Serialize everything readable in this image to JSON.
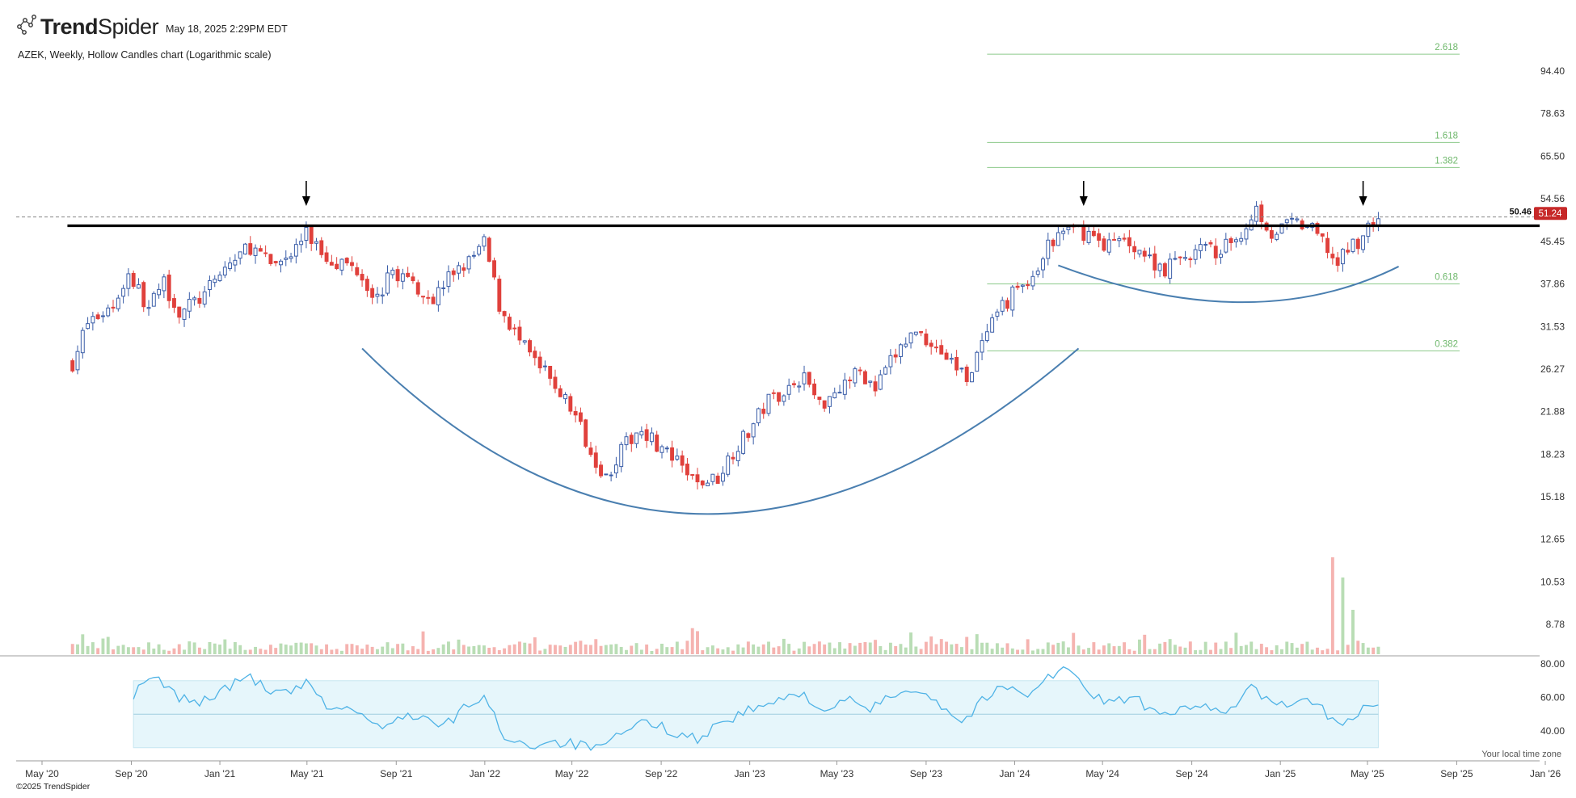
{
  "header": {
    "brand_bold": "Trend",
    "brand_light": "Spider",
    "timestamp": "May 18, 2025 2:29PM EDT",
    "subtitle": "AZEK, Weekly, Hollow Candles chart (Logarithmic scale)",
    "timezone_note": "Your local time zone",
    "copyright": "©2025 TrendSpider"
  },
  "colors": {
    "up": "#3a5da8",
    "down": "#e0413c",
    "vol_up": "#b9ddb5",
    "vol_down": "#f5b3b0",
    "fib": "#8cc98a",
    "fib_text": "#6fb86c",
    "arc": "#4a7fb0",
    "rsi_line": "#4fb3e6",
    "rsi_band": "#e6f6fb",
    "resistance": "#000000",
    "price_badge": "#c62828"
  },
  "icons": [
    "trendspider-logo-icon",
    "arrow-down-icon"
  ],
  "chart_data": {
    "type": "candlestick",
    "symbol": "AZEK",
    "interval": "Weekly",
    "scale": "log",
    "price_axis_ticks": [
      94.4,
      78.63,
      65.5,
      54.56,
      45.45,
      37.86,
      31.53,
      26.27,
      21.88,
      18.23,
      15.18,
      12.65,
      10.53,
      8.78
    ],
    "price_axis_labels": [
      "94.40",
      "78.63",
      "65.50",
      "54.56",
      "45.45",
      "37.86",
      "31.53",
      "26.27",
      "21.88",
      "18.23",
      "15.18",
      "12.65",
      "10.53",
      "8.78"
    ],
    "x_axis_labels": [
      "May '20",
      "Sep '20",
      "Jan '21",
      "May '21",
      "Sep '21",
      "Jan '22",
      "May '22",
      "Sep '22",
      "Jan '23",
      "May '23",
      "Sep '23",
      "Jan '24",
      "May '24",
      "Sep '24",
      "Jan '25",
      "May '25",
      "Sep '25",
      "Jan '26"
    ],
    "x_axis_dates": [
      "2020-05-01",
      "2020-09-01",
      "2021-01-01",
      "2021-05-01",
      "2021-09-01",
      "2022-01-01",
      "2022-05-01",
      "2022-09-01",
      "2023-01-01",
      "2023-05-01",
      "2023-09-01",
      "2024-01-01",
      "2024-05-01",
      "2024-09-01",
      "2025-01-01",
      "2025-05-01",
      "2025-09-01",
      "2026-01-01"
    ],
    "price_path": [
      [
        "2020-06-12",
        27.0
      ],
      [
        "2020-07-03",
        32.0
      ],
      [
        "2020-08-07",
        34.5
      ],
      [
        "2020-08-28",
        39.5
      ],
      [
        "2020-09-25",
        34.0
      ],
      [
        "2020-10-16",
        38.0
      ],
      [
        "2020-11-06",
        33.5
      ],
      [
        "2020-12-11",
        36.0
      ],
      [
        "2021-01-08",
        40.5
      ],
      [
        "2021-02-12",
        44.5
      ],
      [
        "2021-03-12",
        41.0
      ],
      [
        "2021-04-09",
        43.0
      ],
      [
        "2021-04-30",
        47.0
      ],
      [
        "2021-05-28",
        42.5
      ],
      [
        "2021-07-09",
        40.5
      ],
      [
        "2021-08-06",
        35.5
      ],
      [
        "2021-08-27",
        40.0
      ],
      [
        "2021-09-24",
        38.0
      ],
      [
        "2021-10-22",
        35.5
      ],
      [
        "2021-11-19",
        40.0
      ],
      [
        "2021-12-10",
        41.5
      ],
      [
        "2021-12-31",
        45.0
      ],
      [
        "2022-01-21",
        34.5
      ],
      [
        "2022-02-18",
        29.5
      ],
      [
        "2022-03-11",
        27.0
      ],
      [
        "2022-04-08",
        24.5
      ],
      [
        "2022-05-06",
        21.5
      ],
      [
        "2022-05-27",
        18.5
      ],
      [
        "2022-06-17",
        16.5
      ],
      [
        "2022-07-08",
        18.5
      ],
      [
        "2022-08-05",
        20.5
      ],
      [
        "2022-08-26",
        19.0
      ],
      [
        "2022-09-23",
        17.5
      ],
      [
        "2022-10-21",
        16.0
      ],
      [
        "2022-11-18",
        16.5
      ],
      [
        "2022-12-09",
        18.5
      ],
      [
        "2022-12-30",
        20.0
      ],
      [
        "2023-01-27",
        23.0
      ],
      [
        "2023-02-17",
        24.0
      ],
      [
        "2023-03-17",
        25.5
      ],
      [
        "2023-04-07",
        22.5
      ],
      [
        "2023-05-05",
        24.5
      ],
      [
        "2023-06-02",
        26.0
      ],
      [
        "2023-06-23",
        24.0
      ],
      [
        "2023-07-21",
        28.0
      ],
      [
        "2023-08-18",
        31.0
      ],
      [
        "2023-09-15",
        29.0
      ],
      [
        "2023-10-06",
        27.0
      ],
      [
        "2023-10-27",
        25.5
      ],
      [
        "2023-11-17",
        29.0
      ],
      [
        "2023-12-08",
        33.0
      ],
      [
        "2024-01-05",
        37.5
      ],
      [
        "2024-01-26",
        38.0
      ],
      [
        "2024-02-16",
        44.5
      ],
      [
        "2024-03-15",
        48.0
      ],
      [
        "2024-04-12",
        47.0
      ],
      [
        "2024-05-03",
        45.0
      ],
      [
        "2024-06-07",
        45.5
      ],
      [
        "2024-07-05",
        42.0
      ],
      [
        "2024-07-26",
        40.5
      ],
      [
        "2024-08-16",
        42.0
      ],
      [
        "2024-09-13",
        44.0
      ],
      [
        "2024-10-11",
        43.5
      ],
      [
        "2024-11-08",
        47.0
      ],
      [
        "2024-11-29",
        52.5
      ],
      [
        "2024-12-20",
        47.0
      ],
      [
        "2025-01-17",
        49.0
      ],
      [
        "2025-02-07",
        48.5
      ],
      [
        "2025-02-28",
        45.5
      ],
      [
        "2025-03-21",
        41.0
      ],
      [
        "2025-04-04",
        44.0
      ],
      [
        "2025-04-25",
        46.5
      ],
      [
        "2025-05-16",
        51.24
      ]
    ],
    "rsi_axis_labels": [
      "80.00",
      "60.00",
      "40.00"
    ],
    "rsi_band": [
      30,
      70
    ],
    "rsi_path": [
      [
        "2020-09-04",
        62
      ],
      [
        "2020-10-02",
        72
      ],
      [
        "2020-11-06",
        60
      ],
      [
        "2020-12-04",
        57
      ],
      [
        "2021-01-08",
        65
      ],
      [
        "2021-02-12",
        73
      ],
      [
        "2021-03-12",
        62
      ],
      [
        "2021-04-09",
        63
      ],
      [
        "2021-04-30",
        68
      ],
      [
        "2021-05-28",
        55
      ],
      [
        "2021-07-09",
        52
      ],
      [
        "2021-08-13",
        40
      ],
      [
        "2021-09-10",
        50
      ],
      [
        "2021-10-08",
        48
      ],
      [
        "2021-11-05",
        42
      ],
      [
        "2021-12-10",
        56
      ],
      [
        "2021-12-31",
        60
      ],
      [
        "2022-01-28",
        37
      ],
      [
        "2022-03-04",
        31
      ],
      [
        "2022-04-01",
        34
      ],
      [
        "2022-05-06",
        32
      ],
      [
        "2022-06-10",
        29
      ],
      [
        "2022-07-08",
        38
      ],
      [
        "2022-08-12",
        46
      ],
      [
        "2022-09-09",
        41
      ],
      [
        "2022-10-21",
        35
      ],
      [
        "2022-11-18",
        44
      ],
      [
        "2022-12-30",
        52
      ],
      [
        "2023-02-10",
        58
      ],
      [
        "2023-03-17",
        62
      ],
      [
        "2023-04-14",
        52
      ],
      [
        "2023-05-19",
        58
      ],
      [
        "2023-06-16",
        53
      ],
      [
        "2023-07-21",
        62
      ],
      [
        "2023-08-18",
        66
      ],
      [
        "2023-09-15",
        58
      ],
      [
        "2023-10-20",
        45
      ],
      [
        "2023-11-17",
        58
      ],
      [
        "2023-12-15",
        66
      ],
      [
        "2024-01-19",
        63
      ],
      [
        "2024-02-16",
        72
      ],
      [
        "2024-03-15",
        78
      ],
      [
        "2024-04-12",
        61
      ],
      [
        "2024-05-10",
        58
      ],
      [
        "2024-06-14",
        60
      ],
      [
        "2024-07-19",
        48
      ],
      [
        "2024-08-23",
        53
      ],
      [
        "2024-09-27",
        55
      ],
      [
        "2024-10-25",
        52
      ],
      [
        "2024-11-22",
        67
      ],
      [
        "2024-12-20",
        55
      ],
      [
        "2025-01-24",
        58
      ],
      [
        "2025-02-21",
        55
      ],
      [
        "2025-03-28",
        42
      ],
      [
        "2025-04-25",
        55
      ],
      [
        "2025-05-16",
        57
      ]
    ],
    "volume_spikes": [
      [
        "2025-03-14",
        12.0
      ],
      [
        "2025-03-28",
        9.5
      ],
      [
        "2025-04-11",
        5.5
      ]
    ],
    "resistance_level": 48.6,
    "dashed_price_level": 50.46,
    "price_labels": {
      "dashed": "50.46",
      "last": "51.24"
    },
    "fib_levels": [
      {
        "label": "2.618",
        "price": 101.5
      },
      {
        "label": "1.618",
        "price": 69.5
      },
      {
        "label": "1.382",
        "price": 62.4
      },
      {
        "label": "0.618",
        "price": 37.86
      },
      {
        "label": "0.382",
        "price": 28.4
      }
    ],
    "cup_arcs": [
      {
        "name": "cup",
        "points": [
          [
            "2021-07-16",
            28.7
          ],
          [
            "2022-11-04",
            14.1
          ],
          [
            "2024-03-29",
            28.7
          ]
        ]
      },
      {
        "name": "handle",
        "points": [
          [
            "2024-03-01",
            41.0
          ],
          [
            "2024-11-08",
            35.0
          ],
          [
            "2025-06-13",
            40.8
          ]
        ]
      }
    ],
    "arrow_markers": [
      "2021-04-30",
      "2024-04-05",
      "2025-04-25"
    ]
  }
}
